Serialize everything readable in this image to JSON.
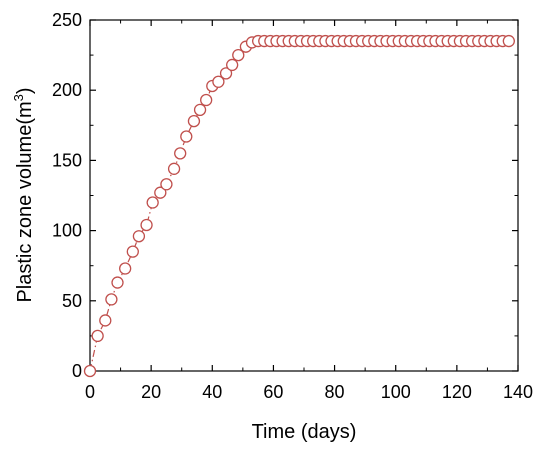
{
  "chart_data": {
    "type": "line",
    "title": "",
    "xlabel": "Time (days)",
    "ylabel": {
      "prefix": "Plastic zone volume(m",
      "superscript": "3",
      "suffix": ")"
    },
    "xlim": [
      0,
      140
    ],
    "ylim": [
      0,
      250
    ],
    "x_ticks": [
      0,
      20,
      40,
      60,
      80,
      100,
      120,
      140
    ],
    "y_ticks": [
      0,
      50,
      100,
      150,
      200,
      250
    ],
    "grid": false,
    "legend": "none",
    "series": [
      {
        "color": "#c0504d",
        "marker": "open-circle",
        "line_style": "dash-dot",
        "x": [
          0,
          2.5,
          5,
          7,
          9,
          11.5,
          14,
          16,
          18.5,
          20.5,
          23,
          25,
          27.5,
          29.5,
          31.5,
          34,
          36,
          38,
          40,
          42,
          44.5,
          46.5,
          48.5,
          51,
          53,
          55,
          57,
          59,
          61,
          63,
          65,
          67,
          69,
          71,
          73,
          75,
          77,
          79,
          81,
          83,
          85,
          87,
          89,
          91,
          93,
          95,
          97,
          99,
          101,
          103,
          105,
          107,
          109,
          111,
          113,
          115,
          117,
          119,
          121,
          123,
          125,
          127,
          129,
          131,
          133,
          135,
          137
        ],
        "y": [
          0,
          25,
          36,
          51,
          63,
          73,
          85,
          96,
          104,
          120,
          127,
          133,
          144,
          155,
          167,
          178,
          186,
          193,
          203,
          206,
          212,
          218,
          225,
          231,
          234,
          235,
          235,
          235,
          235,
          235,
          235,
          235,
          235,
          235,
          235,
          235,
          235,
          235,
          235,
          235,
          235,
          235,
          235,
          235,
          235,
          235,
          235,
          235,
          235,
          235,
          235,
          235,
          235,
          235,
          235,
          235,
          235,
          235,
          235,
          235,
          235,
          235,
          235,
          235,
          235,
          235,
          235
        ]
      }
    ]
  }
}
